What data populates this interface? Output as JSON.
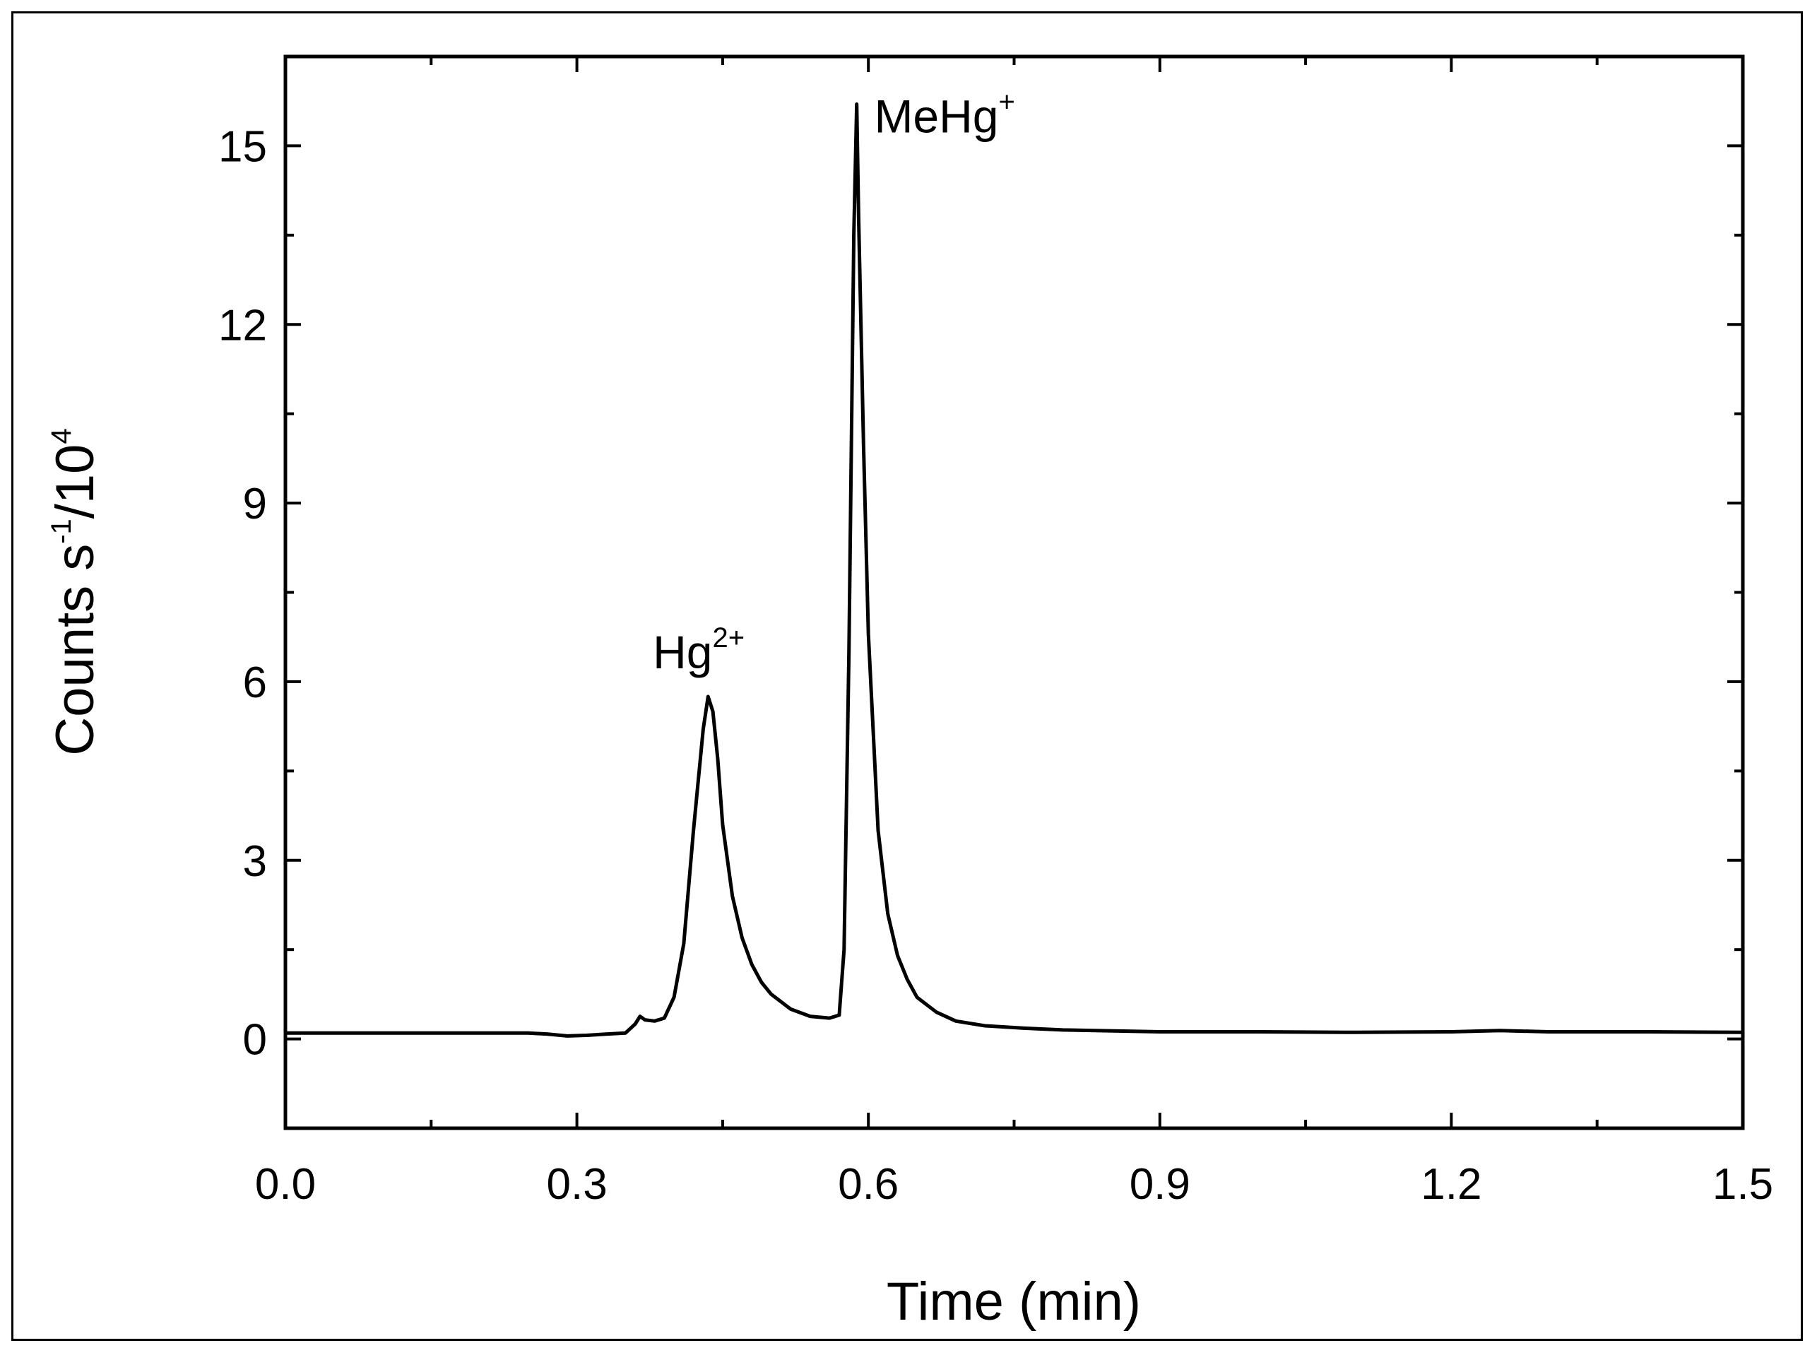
{
  "chart_data": {
    "type": "line",
    "title": "",
    "xlabel": "Time (min)",
    "ylabel": {
      "base": "Counts s",
      "exp1": "-1",
      "mid": "/10",
      "exp2": "4"
    },
    "xlim": [
      0.0,
      1.5
    ],
    "ylim": [
      -1.5,
      16.5
    ],
    "x_ticks": [
      "0.0",
      "0.3",
      "0.6",
      "0.9",
      "1.2",
      "1.5"
    ],
    "x_tick_values": [
      0.0,
      0.3,
      0.6,
      0.9,
      1.2,
      1.5
    ],
    "y_ticks": [
      "0",
      "3",
      "6",
      "9",
      "12",
      "15"
    ],
    "y_tick_values": [
      0,
      3,
      6,
      9,
      12,
      15
    ],
    "grid": false,
    "legend": "none",
    "line_color": "#000000",
    "annotations": [
      {
        "text": "Hg",
        "sup": "2+",
        "x": 0.44,
        "y": 5.75
      },
      {
        "text": "MeHg",
        "sup": "+",
        "x": 0.59,
        "y": 15.7
      }
    ],
    "series": [
      {
        "x": [
          0.0,
          0.05,
          0.1,
          0.15,
          0.2,
          0.25,
          0.27,
          0.29,
          0.31,
          0.33,
          0.35,
          0.36,
          0.365,
          0.37,
          0.38,
          0.39,
          0.4,
          0.41,
          0.42,
          0.43,
          0.435,
          0.44,
          0.445,
          0.45,
          0.46,
          0.47,
          0.48,
          0.49,
          0.5,
          0.52,
          0.54,
          0.56,
          0.57,
          0.575,
          0.58,
          0.585,
          0.588,
          0.59,
          0.595,
          0.6,
          0.61,
          0.62,
          0.63,
          0.64,
          0.65,
          0.67,
          0.69,
          0.72,
          0.76,
          0.8,
          0.9,
          1.0,
          1.1,
          1.2,
          1.25,
          1.3,
          1.4,
          1.5
        ],
        "y": [
          0.1,
          0.1,
          0.1,
          0.1,
          0.1,
          0.1,
          0.08,
          0.05,
          0.06,
          0.08,
          0.1,
          0.25,
          0.38,
          0.32,
          0.3,
          0.35,
          0.7,
          1.6,
          3.5,
          5.2,
          5.75,
          5.5,
          4.7,
          3.6,
          2.4,
          1.7,
          1.25,
          0.95,
          0.75,
          0.5,
          0.38,
          0.35,
          0.4,
          1.5,
          6.5,
          13.5,
          15.7,
          13.8,
          10.0,
          6.8,
          3.5,
          2.1,
          1.4,
          1.0,
          0.7,
          0.45,
          0.3,
          0.22,
          0.18,
          0.15,
          0.12,
          0.12,
          0.11,
          0.12,
          0.14,
          0.12,
          0.12,
          0.11
        ]
      }
    ]
  }
}
